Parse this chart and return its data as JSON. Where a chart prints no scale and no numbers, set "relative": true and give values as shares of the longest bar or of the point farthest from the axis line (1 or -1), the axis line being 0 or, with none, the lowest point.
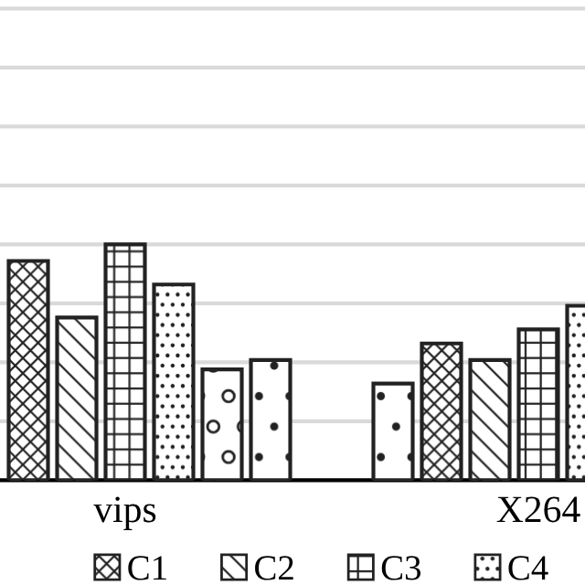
{
  "chart_data": {
    "type": "bar",
    "relative": true,
    "categories": [
      "vips",
      "X264"
    ],
    "series": [
      {
        "color": "#222222",
        "values": [
          null,
          0.41
        ]
      },
      {
        "name": "C1",
        "color": "#222222",
        "values": [
          0.93,
          0.58
        ]
      },
      {
        "name": "C2",
        "color": "#222222",
        "values": [
          0.69,
          0.51
        ]
      },
      {
        "name": "C3",
        "color": "#222222",
        "values": [
          1,
          0.64
        ]
      },
      {
        "name": "C4",
        "color": "#222222",
        "values": [
          0.83,
          0.74
        ]
      },
      {
        "color": "#222222",
        "values": [
          0.47,
          null
        ]
      },
      {
        "color": "#222222",
        "values": [
          0.51,
          null
        ]
      }
    ],
    "grid": "y",
    "legend": "bottom"
  }
}
